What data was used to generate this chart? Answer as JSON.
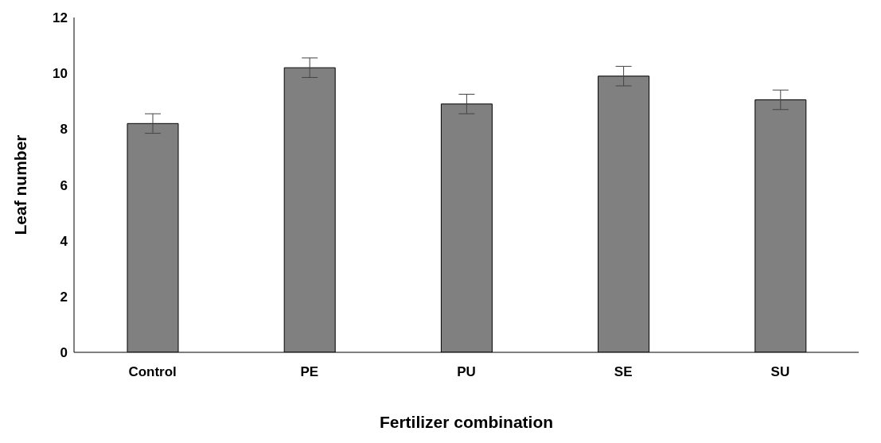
{
  "chart_data": {
    "type": "bar",
    "xlabel": "Fertilizer combination",
    "ylabel": "Leaf number",
    "categories": [
      "Control",
      "PE",
      "PU",
      "SE",
      "SU"
    ],
    "values": [
      8.2,
      10.2,
      8.9,
      9.9,
      9.05
    ],
    "errors": [
      0.35,
      0.35,
      0.35,
      0.35,
      0.35
    ],
    "color": "#808080",
    "ylim": [
      0,
      12
    ],
    "yticks": [
      0,
      2,
      4,
      6,
      8,
      10,
      12
    ],
    "grid": false,
    "legend": false
  }
}
